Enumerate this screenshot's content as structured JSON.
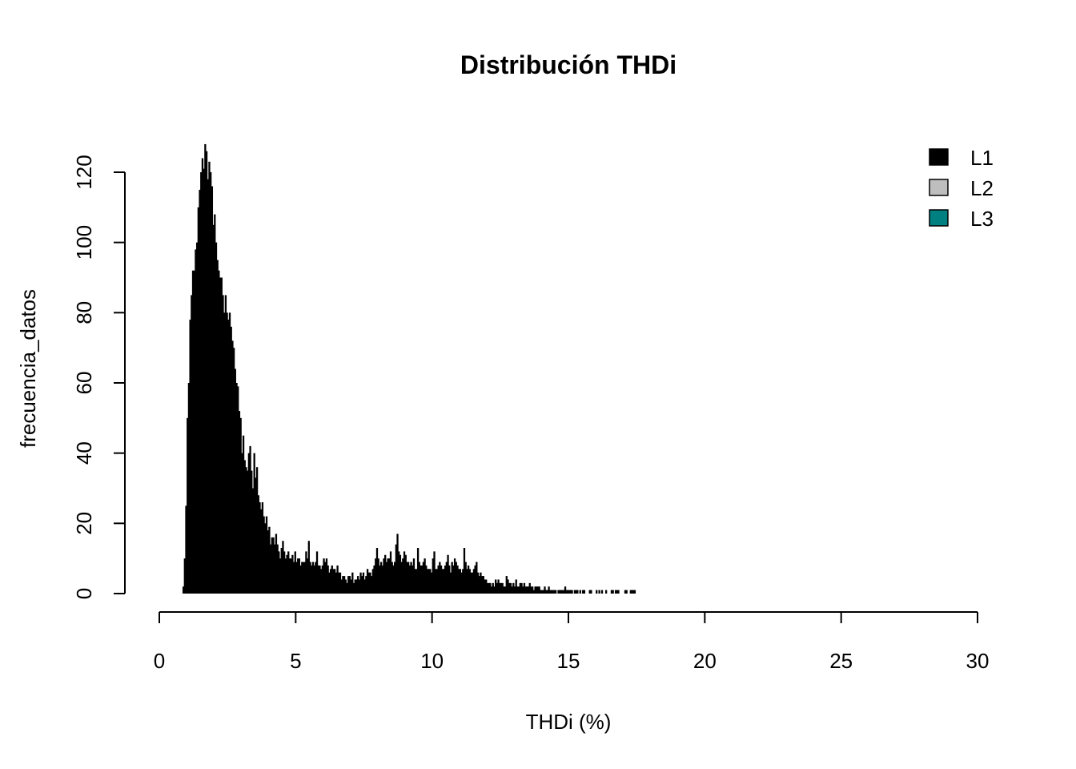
{
  "chart_data": {
    "type": "bar",
    "title": "Distribución THDi",
    "xlabel": "THDi (%)",
    "ylabel": "frecuencia_datos",
    "xlim": [
      0,
      30
    ],
    "ylim": [
      0,
      120
    ],
    "x_ticks": [
      0,
      5,
      10,
      15,
      20,
      25,
      30
    ],
    "y_ticks": [
      0,
      20,
      40,
      60,
      80,
      100,
      120
    ],
    "bin_width": 0.05,
    "bin_start": 0.85,
    "grid": false,
    "legend": {
      "position": "top-right",
      "entries": [
        {
          "label": "L1",
          "color": "#000000"
        },
        {
          "label": "L2",
          "color": "#bebebe"
        },
        {
          "label": "L3",
          "color": "#008080"
        }
      ]
    },
    "series": [
      {
        "name": "L1",
        "color": "#000000",
        "values": [
          2,
          10,
          25,
          50,
          60,
          78,
          85,
          92,
          92,
          98,
          100,
          110,
          115,
          120,
          124,
          121,
          128,
          126,
          118,
          123,
          120,
          116,
          105,
          108,
          100,
          95,
          92,
          90,
          90,
          85,
          80,
          85,
          80,
          78,
          80,
          76,
          72,
          70,
          64,
          60,
          59,
          52,
          50,
          40,
          45,
          38,
          36,
          35,
          40,
          42,
          35,
          30,
          40,
          33,
          36,
          28,
          26,
          24,
          26,
          22,
          20,
          22,
          18,
          19,
          14,
          16,
          16,
          14,
          17,
          14,
          12,
          10,
          13,
          15,
          12,
          10,
          11,
          12,
          10,
          10,
          11,
          9,
          12,
          9,
          10,
          10,
          8,
          9,
          9,
          9,
          12,
          10,
          15,
          9,
          8,
          9,
          8,
          9,
          12,
          8,
          8,
          7,
          8,
          10,
          9,
          10,
          8,
          6,
          7,
          8,
          7,
          7,
          6,
          8,
          6,
          6,
          4,
          5,
          5,
          4,
          3,
          5,
          5,
          4,
          6,
          3,
          4,
          4,
          5,
          4,
          6,
          5,
          6,
          4,
          5,
          7,
          6,
          6,
          5,
          7,
          8,
          10,
          13,
          10,
          8,
          9,
          8,
          10,
          11,
          9,
          10,
          10,
          12,
          9,
          8,
          9,
          14,
          17,
          12,
          11,
          9,
          10,
          12,
          11,
          9,
          9,
          8,
          9,
          8,
          10,
          7,
          7,
          13,
          9,
          8,
          8,
          9,
          10,
          8,
          7,
          7,
          7,
          6,
          10,
          12,
          7,
          7,
          8,
          9,
          8,
          7,
          7,
          8,
          9,
          11,
          8,
          6,
          9,
          8,
          10,
          9,
          8,
          7,
          7,
          6,
          7,
          13,
          9,
          7,
          8,
          7,
          6,
          6,
          7,
          8,
          9,
          6,
          5,
          6,
          5,
          5,
          4,
          4,
          3,
          3,
          3,
          2,
          3,
          2,
          4,
          3,
          4,
          3,
          3,
          3,
          2,
          2,
          5,
          4,
          3,
          3,
          2,
          3,
          2,
          4,
          2,
          2,
          3,
          3,
          2,
          3,
          2,
          2,
          2,
          3,
          2,
          2,
          1,
          2,
          2,
          2,
          2,
          1,
          1,
          1,
          2,
          1,
          1,
          2,
          1,
          1,
          1,
          1,
          1,
          0,
          1,
          1,
          1,
          1,
          1,
          2,
          1,
          1,
          1,
          1,
          1,
          0,
          1,
          1,
          1,
          0,
          1,
          0,
          1,
          1,
          0,
          0,
          0,
          1,
          1,
          0,
          0,
          0,
          1,
          0,
          1,
          0,
          1,
          0,
          0,
          1,
          0,
          0,
          0,
          1,
          1,
          0,
          1,
          1,
          1,
          0,
          0,
          0,
          0,
          1,
          1,
          0,
          0,
          1,
          1,
          1,
          1
        ]
      }
    ]
  }
}
